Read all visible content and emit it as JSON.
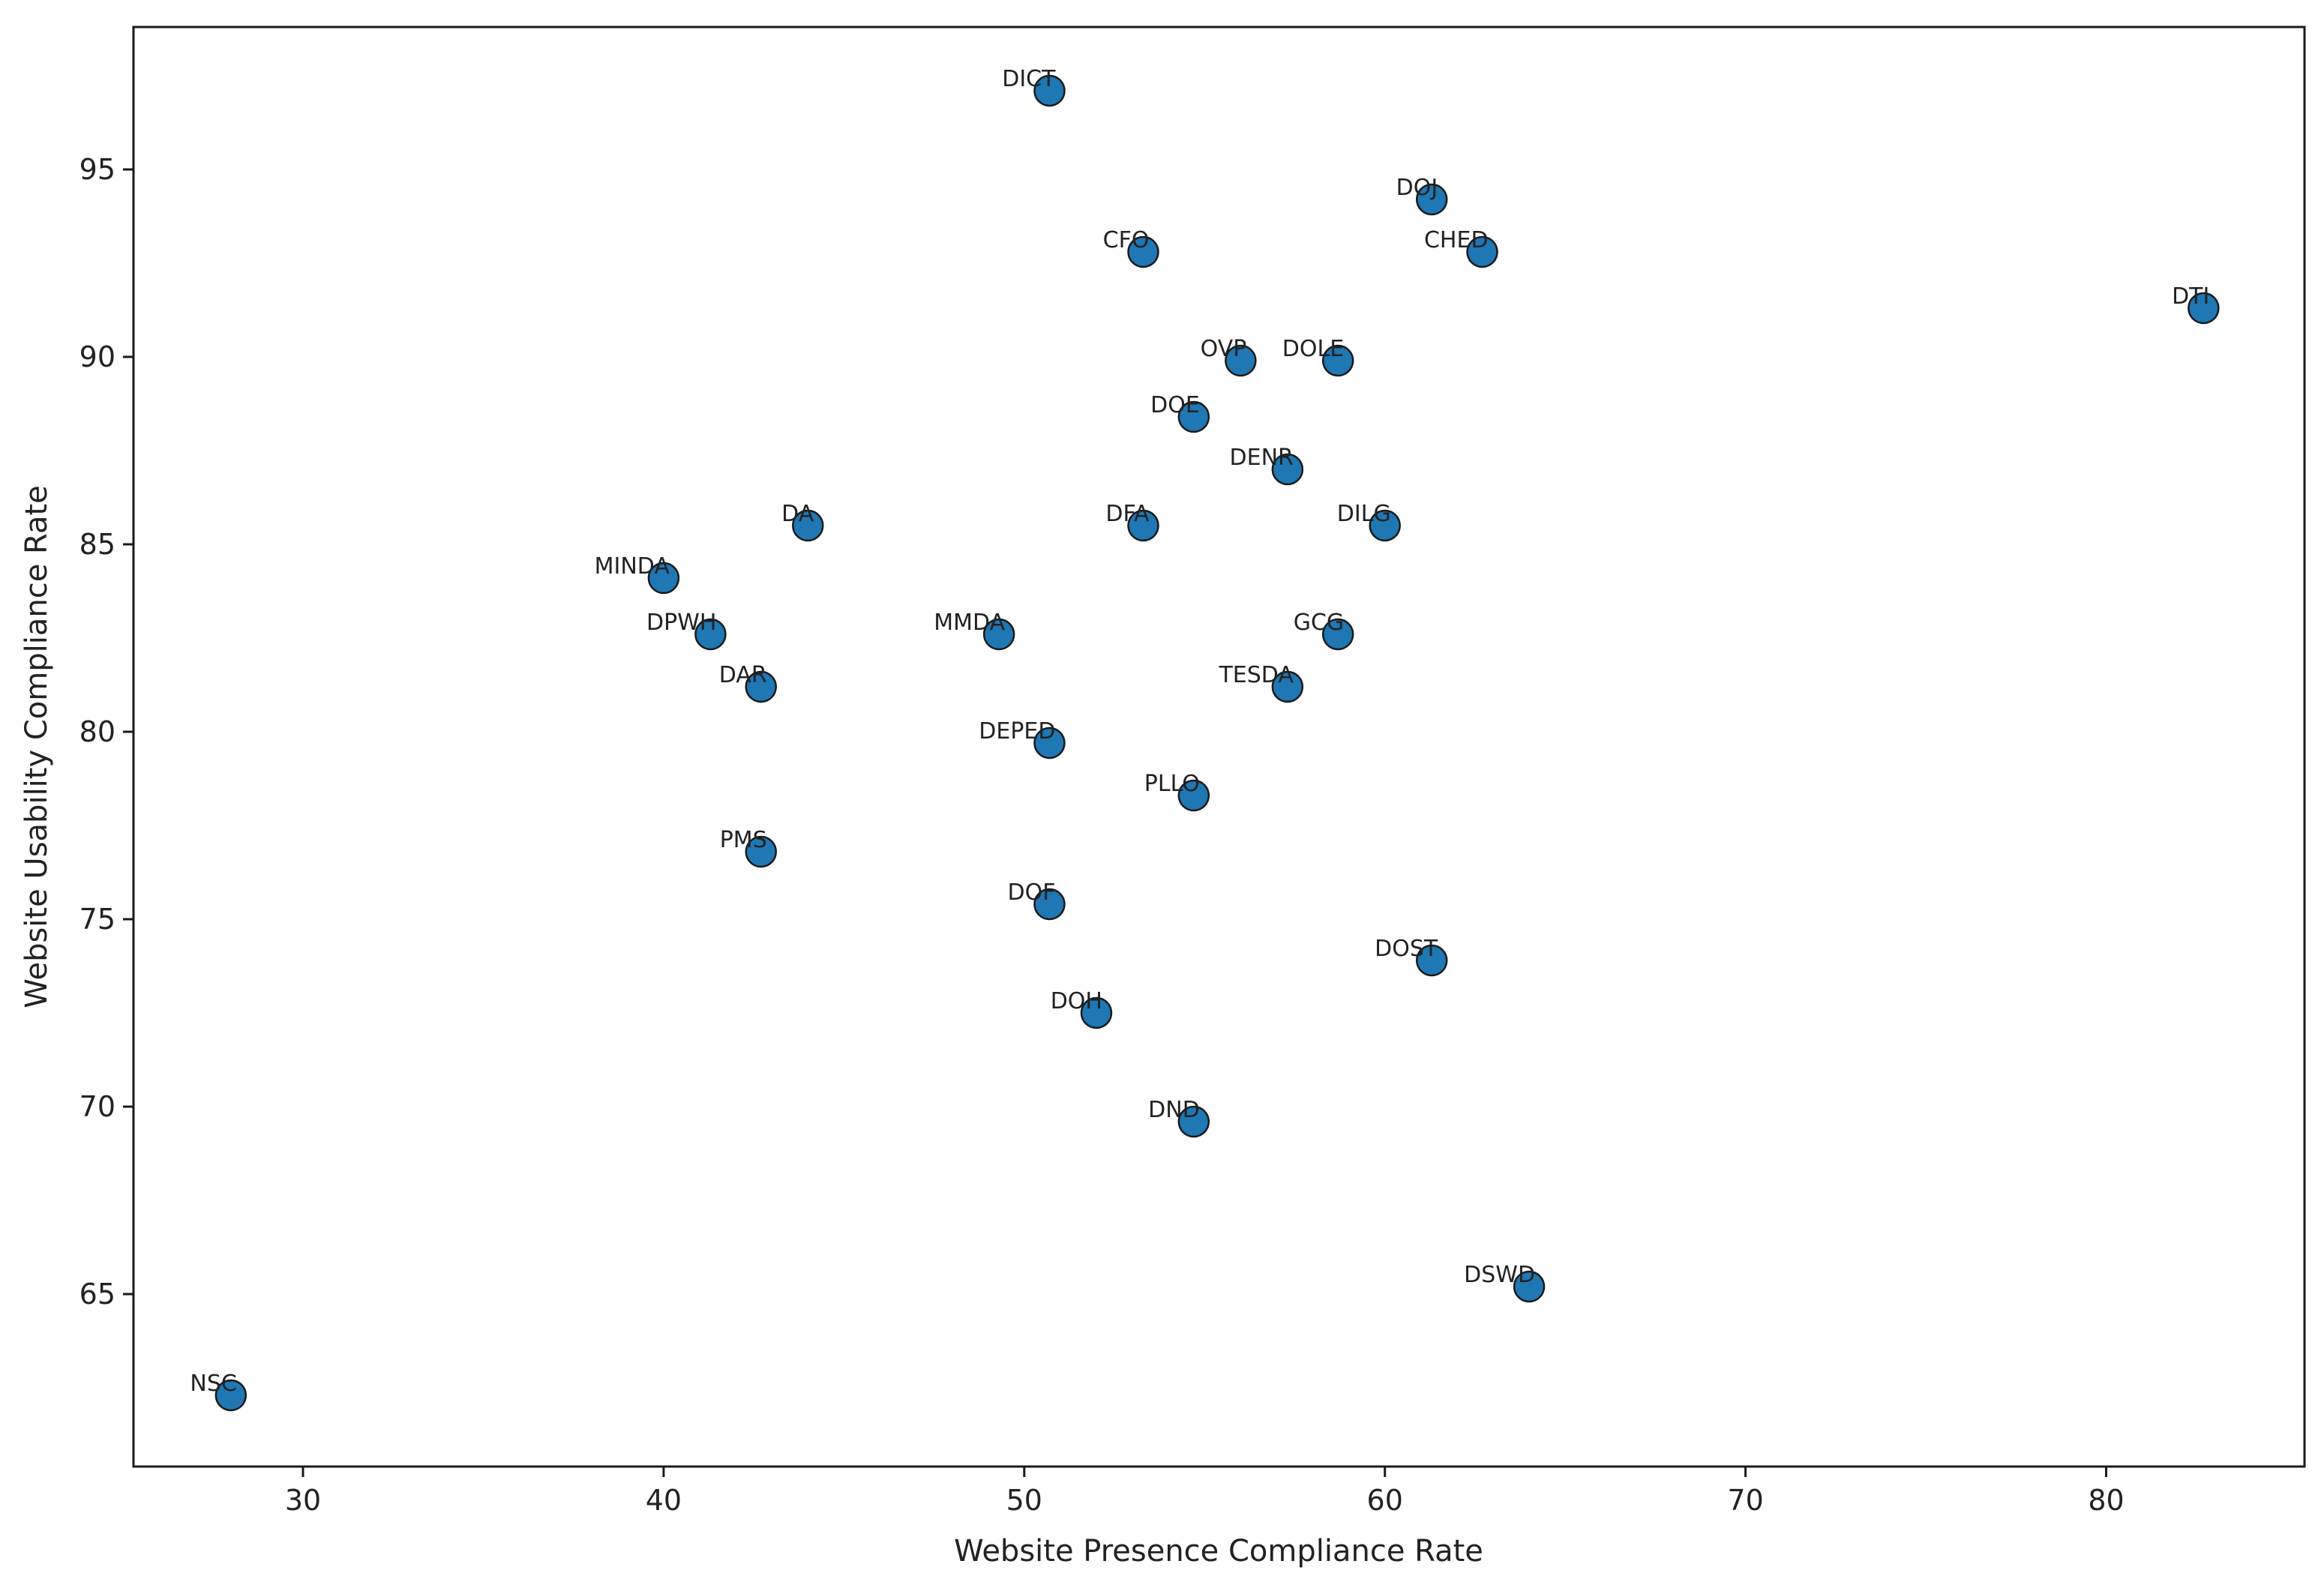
{
  "chart_data": {
    "type": "scatter",
    "title": "",
    "xlabel": "Website Presence Compliance Rate",
    "ylabel": "Website Usability Compliance Rate",
    "xlim": [
      25.3,
      85.5
    ],
    "ylim": [
      60.4,
      98.8
    ],
    "xticks": [
      30,
      40,
      50,
      60,
      70,
      80
    ],
    "yticks": [
      65,
      70,
      75,
      80,
      85,
      90,
      95
    ],
    "grid": false,
    "legend": "none",
    "marker_color": "#1f77b4",
    "marker_edge": "#1a1a1a",
    "points": [
      {
        "label": "DICT",
        "x": 50.7,
        "y": 97.1
      },
      {
        "label": "DOJ",
        "x": 61.3,
        "y": 94.2
      },
      {
        "label": "CFO",
        "x": 53.3,
        "y": 92.8
      },
      {
        "label": "CHED",
        "x": 62.7,
        "y": 92.8
      },
      {
        "label": "DTI",
        "x": 82.7,
        "y": 91.3
      },
      {
        "label": "OVP",
        "x": 56.0,
        "y": 89.9
      },
      {
        "label": "DOLE",
        "x": 58.7,
        "y": 89.9
      },
      {
        "label": "DOE",
        "x": 54.7,
        "y": 88.4
      },
      {
        "label": "DENR",
        "x": 57.3,
        "y": 87.0
      },
      {
        "label": "DA",
        "x": 44.0,
        "y": 85.5
      },
      {
        "label": "DFA",
        "x": 53.3,
        "y": 85.5
      },
      {
        "label": "DILG",
        "x": 60.0,
        "y": 85.5
      },
      {
        "label": "MINDA",
        "x": 40.0,
        "y": 84.1
      },
      {
        "label": "DPWH",
        "x": 41.3,
        "y": 82.6
      },
      {
        "label": "MMDA",
        "x": 49.3,
        "y": 82.6
      },
      {
        "label": "GCG",
        "x": 58.7,
        "y": 82.6
      },
      {
        "label": "DAR",
        "x": 42.7,
        "y": 81.2
      },
      {
        "label": "TESDA",
        "x": 57.3,
        "y": 81.2
      },
      {
        "label": "DEPED",
        "x": 50.7,
        "y": 79.7
      },
      {
        "label": "PLLO",
        "x": 54.7,
        "y": 78.3
      },
      {
        "label": "PMS",
        "x": 42.7,
        "y": 76.8
      },
      {
        "label": "DOF",
        "x": 50.7,
        "y": 75.4
      },
      {
        "label": "DOST",
        "x": 61.3,
        "y": 73.9
      },
      {
        "label": "DOH",
        "x": 52.0,
        "y": 72.5
      },
      {
        "label": "DND",
        "x": 54.7,
        "y": 69.6
      },
      {
        "label": "DSWD",
        "x": 64.0,
        "y": 65.2
      },
      {
        "label": "NSC",
        "x": 28.0,
        "y": 62.3
      }
    ]
  }
}
